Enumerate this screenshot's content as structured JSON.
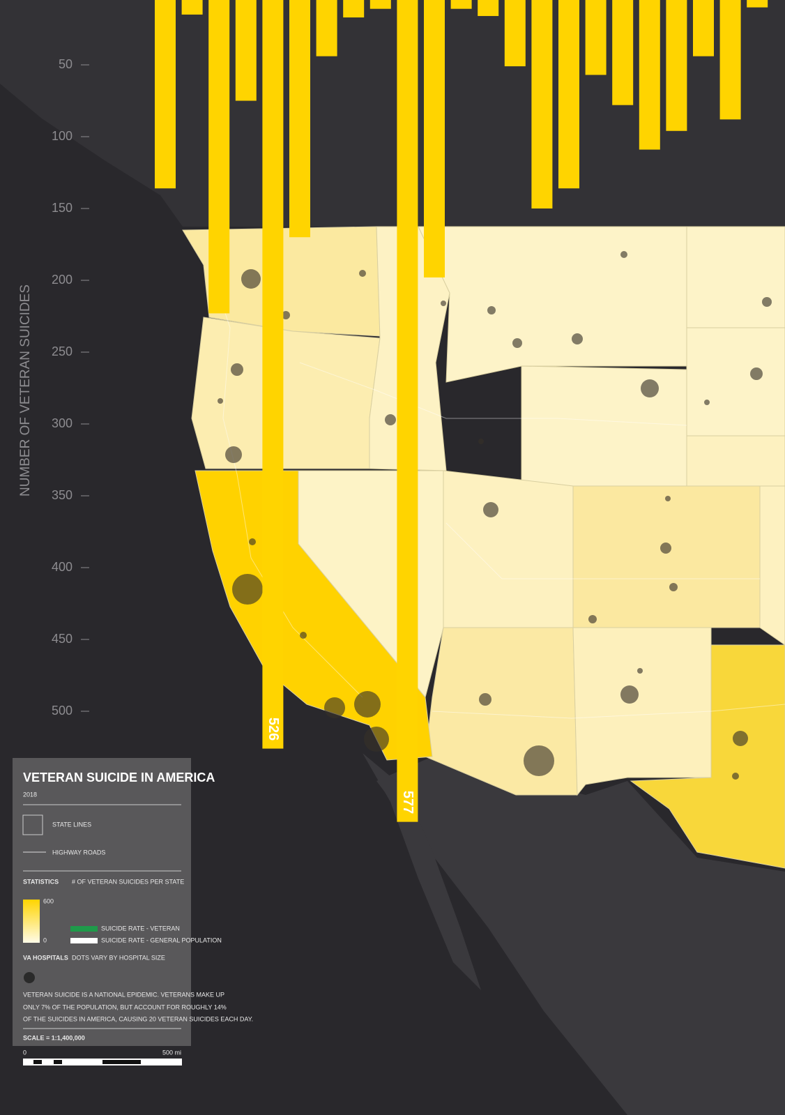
{
  "chart_data": {
    "type": "bar",
    "y_label": "NUMBER OF VETERAN SUICIDES",
    "color": "#ffd400",
    "values": [
      136,
      15,
      223,
      75,
      526,
      170,
      44,
      17,
      11,
      577,
      198,
      11,
      16,
      51,
      150,
      136,
      57,
      78,
      109,
      96,
      44,
      88,
      10
    ],
    "value_labels": [
      null,
      null,
      null,
      null,
      "526",
      null,
      null,
      null,
      null,
      "577",
      null,
      null,
      null,
      null,
      null,
      null,
      null,
      null,
      null,
      null,
      null,
      null,
      null
    ],
    "ylim": [
      0,
      700
    ],
    "yticks": [
      50,
      100,
      150,
      200,
      250,
      300,
      350,
      400,
      450,
      500
    ]
  },
  "legend": {
    "title": "VETERAN SUICIDE IN AMERICA",
    "year": "2018",
    "state_lines": "STATE LINES",
    "highway_roads": "HIGHWAY ROADS",
    "statistics": "STATISTICS",
    "statistics_desc": "# OF VETERAN SUICIDES PER STATE",
    "gradient_max": "600",
    "gradient_min": "0",
    "rate_veteran": "SUICIDE RATE - VETERAN",
    "rate_general": "SUICIDE RATE - GENERAL POPULATION",
    "hospitals": "VA HOSPITALS",
    "hospitals_desc": "DOTS VARY BY HOSPITAL SIZE",
    "note": [
      "VETERAN SUICIDE IS A NATIONAL EPIDEMIC. VETERANS MAKE UP",
      "ONLY 7% OF THE POPULATION, BUT ACCOUNT FOR ROUGHLY 14%",
      "OF THE SUICIDES IN AMERICA, CAUSING 20 VETERAN SUICIDES EACH DAY."
    ],
    "scale": "SCALE = 1:1,400,000",
    "scale_start": "0",
    "scale_end": "500 mi"
  }
}
